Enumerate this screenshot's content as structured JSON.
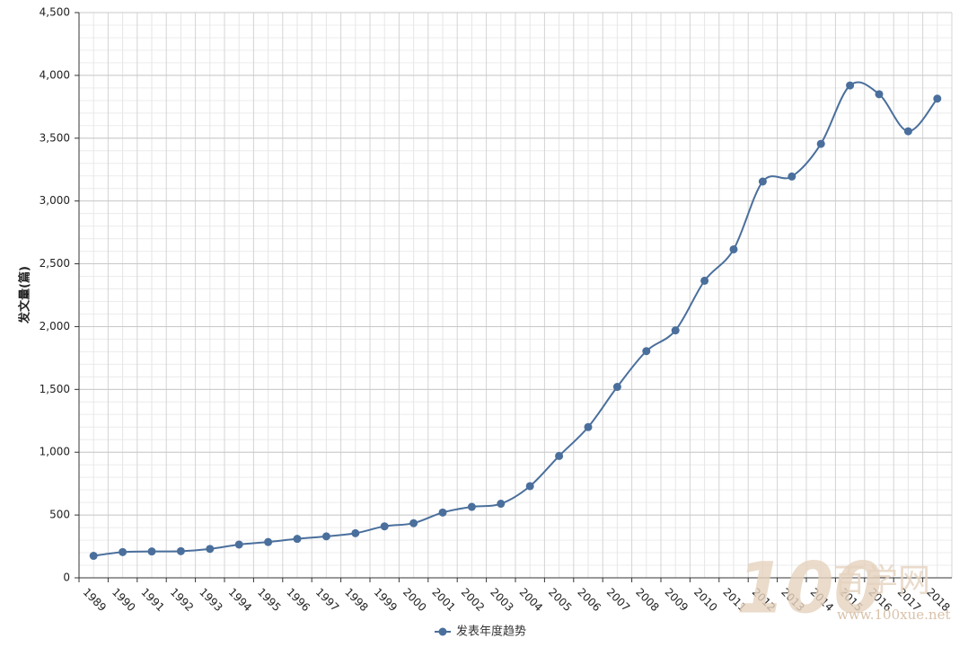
{
  "chart_data": {
    "type": "line",
    "y_label": "发文量(篇)",
    "categories": [
      "1989",
      "1990",
      "1991",
      "1992",
      "1993",
      "1994",
      "1995",
      "1996",
      "1997",
      "1998",
      "1999",
      "2000",
      "2001",
      "2002",
      "2003",
      "2004",
      "2005",
      "2006",
      "2007",
      "2008",
      "2009",
      "2010",
      "2011",
      "2012",
      "2013",
      "2014",
      "2015",
      "2016",
      "2017",
      "2018"
    ],
    "series": [
      {
        "name": "发表年度趋势",
        "color": "#4a6f9c",
        "values": [
          175,
          205,
          210,
          212,
          230,
          265,
          285,
          310,
          330,
          355,
          410,
          435,
          520,
          565,
          590,
          730,
          970,
          1200,
          1520,
          1805,
          1970,
          2365,
          2615,
          3155,
          3195,
          3455,
          3920,
          3850,
          3555,
          3815
        ]
      }
    ],
    "ylim": [
      0,
      4500
    ],
    "yticks": [
      0,
      500,
      {
        "value": 1000,
        "label": "1,000"
      },
      {
        "value": 1500,
        "label": "1,500"
      },
      {
        "value": 2000,
        "label": "2,000"
      },
      {
        "value": 2500,
        "label": "2,500"
      },
      {
        "value": 3000,
        "label": "3,000"
      },
      {
        "value": 3500,
        "label": "3,500"
      },
      {
        "value": 4000,
        "label": "4,000"
      },
      {
        "value": 4500,
        "label": "4,500"
      }
    ],
    "grid": true,
    "legend": "bottom",
    "watermark": [
      "100",
      "百学网",
      "www.100xue.net"
    ]
  }
}
